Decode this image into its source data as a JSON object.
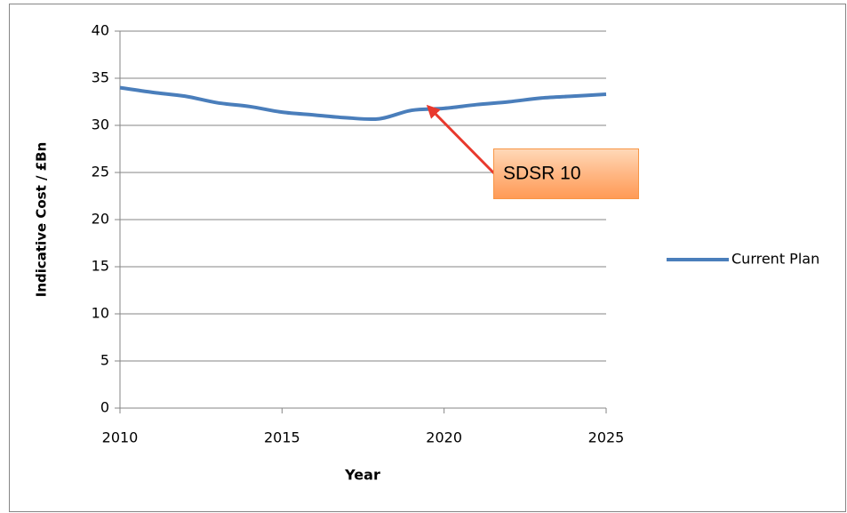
{
  "chart_data": {
    "type": "line",
    "x": [
      2010,
      2011,
      2012,
      2013,
      2014,
      2015,
      2016,
      2017,
      2018,
      2019,
      2020,
      2021,
      2022,
      2023,
      2024,
      2025
    ],
    "series": [
      {
        "name": "Current Plan",
        "color": "#4a7ebb",
        "values": [
          34.0,
          33.5,
          33.1,
          32.4,
          32.0,
          31.4,
          31.1,
          30.8,
          30.7,
          31.6,
          31.8,
          32.2,
          32.5,
          32.9,
          33.1,
          33.3
        ]
      }
    ],
    "xlim": [
      2010,
      2025
    ],
    "xticks": [
      2010,
      2015,
      2020,
      2025
    ],
    "ylim": [
      0,
      40
    ],
    "yticks": [
      0,
      5,
      10,
      15,
      20,
      25,
      30,
      35,
      40
    ],
    "xlabel": "Year",
    "ylabel": "Indicative Cost / £Bn",
    "grid": true,
    "legend": "right",
    "annotations": [
      {
        "text": "SDSR 10"
      }
    ]
  }
}
